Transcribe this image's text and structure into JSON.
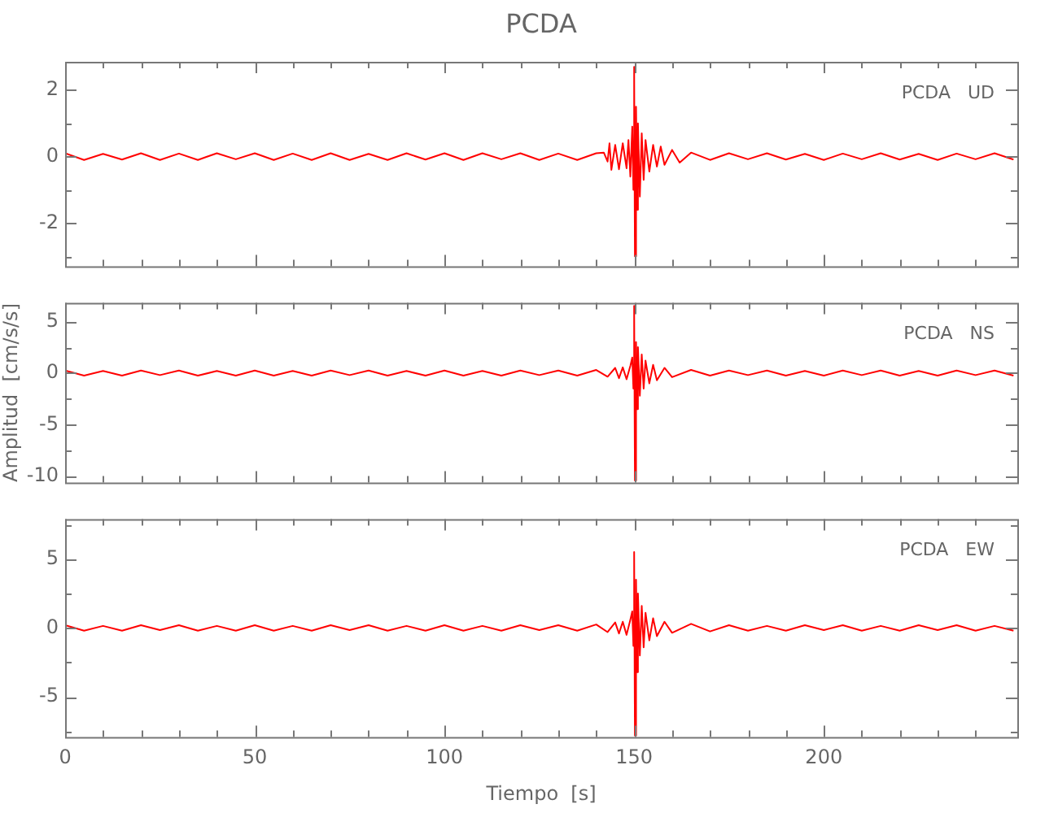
{
  "chart_data": [
    {
      "type": "line",
      "title": "PCDA",
      "annotations": [
        "PCDA   UD"
      ],
      "tick_labels": "y",
      "grid": false,
      "legend": false,
      "marker": "none",
      "line_style": "solid",
      "x": [
        0,
        5,
        10,
        15,
        20,
        25,
        30,
        35,
        40,
        45,
        50,
        55,
        60,
        65,
        70,
        75,
        80,
        85,
        90,
        95,
        100,
        105,
        110,
        115,
        120,
        125,
        130,
        135,
        140,
        142,
        143,
        143.5,
        144,
        145,
        146,
        147,
        148,
        148.5,
        149,
        149.5,
        149.8,
        150,
        150.2,
        150.5,
        150.8,
        151,
        151.5,
        152,
        152.5,
        153,
        154,
        155,
        156,
        157,
        158,
        160,
        162,
        165,
        170,
        175,
        180,
        185,
        190,
        195,
        200,
        205,
        210,
        215,
        220,
        225,
        230,
        235,
        240,
        245,
        250
      ],
      "series": [
        {
          "color": "#ff0000",
          "values": [
            0.1,
            -0.1,
            0.08,
            -0.09,
            0.1,
            -0.1,
            0.09,
            -0.1,
            0.1,
            -0.08,
            0.1,
            -0.1,
            0.09,
            -0.1,
            0.1,
            -0.1,
            0.08,
            -0.1,
            0.1,
            -0.09,
            0.1,
            -0.1,
            0.1,
            -0.08,
            0.1,
            -0.1,
            0.09,
            -0.1,
            0.1,
            0.12,
            -0.15,
            0.4,
            -0.4,
            0.35,
            -0.38,
            0.4,
            -0.35,
            0.5,
            -0.6,
            0.9,
            -1.0,
            2.7,
            -3.0,
            1.5,
            -1.6,
            1.0,
            -1.2,
            0.7,
            -0.7,
            0.5,
            -0.45,
            0.35,
            -0.3,
            0.3,
            -0.25,
            0.2,
            -0.18,
            0.12,
            -0.1,
            0.1,
            -0.08,
            0.1,
            -0.09,
            0.08,
            -0.1,
            0.09,
            -0.08,
            0.1,
            -0.09,
            0.08,
            -0.1,
            0.09,
            -0.08,
            0.1,
            -0.09
          ]
        }
      ],
      "xlim": [
        0,
        251
      ],
      "xticks": [
        0,
        {
          "value": 10,
          "label": null
        },
        {
          "value": 20,
          "label": null
        },
        {
          "value": 30,
          "label": null
        },
        {
          "value": 40,
          "label": null
        },
        50,
        {
          "value": 60,
          "label": null
        },
        {
          "value": 70,
          "label": null
        },
        {
          "value": 80,
          "label": null
        },
        {
          "value": 90,
          "label": null
        },
        100,
        {
          "value": 110,
          "label": null
        },
        {
          "value": 120,
          "label": null
        },
        {
          "value": 130,
          "label": null
        },
        {
          "value": 140,
          "label": null
        },
        150,
        {
          "value": 160,
          "label": null
        },
        {
          "value": 170,
          "label": null
        },
        {
          "value": 180,
          "label": null
        },
        {
          "value": 190,
          "label": null
        },
        200,
        {
          "value": 210,
          "label": null
        },
        {
          "value": 220,
          "label": null
        },
        {
          "value": 230,
          "label": null
        },
        {
          "value": 240,
          "label": null
        }
      ],
      "ylim": [
        -3.3,
        2.85
      ],
      "yticks": [
        {
          "value": -3,
          "label": null
        },
        -2,
        {
          "value": -1,
          "label": null
        },
        0,
        {
          "value": 1,
          "label": null
        },
        2
      ]
    },
    {
      "type": "line",
      "ylabel": "Amplitud  [cm/s/s]",
      "annotations": [
        "PCDA   NS"
      ],
      "tick_labels": "y",
      "grid": false,
      "legend": false,
      "marker": "none",
      "line_style": "solid",
      "x": [
        0,
        5,
        10,
        15,
        20,
        25,
        30,
        35,
        40,
        45,
        50,
        55,
        60,
        65,
        70,
        75,
        80,
        85,
        90,
        95,
        100,
        105,
        110,
        115,
        120,
        125,
        130,
        135,
        140,
        143,
        145,
        146,
        147,
        148,
        149,
        149.5,
        149.8,
        150,
        150.2,
        150.5,
        150.8,
        151,
        151.5,
        152,
        152.5,
        153,
        154,
        155,
        156,
        158,
        160,
        165,
        170,
        175,
        180,
        185,
        190,
        195,
        200,
        205,
        210,
        215,
        220,
        225,
        230,
        235,
        240,
        245,
        250
      ],
      "series": [
        {
          "color": "#ff0000",
          "values": [
            0.25,
            -0.25,
            0.2,
            -0.25,
            0.25,
            -0.2,
            0.25,
            -0.25,
            0.2,
            -0.25,
            0.25,
            -0.25,
            0.2,
            -0.25,
            0.25,
            -0.2,
            0.25,
            -0.25,
            0.2,
            -0.25,
            0.25,
            -0.25,
            0.2,
            -0.25,
            0.25,
            -0.2,
            0.25,
            -0.25,
            0.3,
            -0.35,
            0.5,
            -0.5,
            0.55,
            -0.6,
            0.7,
            1.5,
            -1.5,
            6.5,
            -10.4,
            3.0,
            -3.5,
            2.5,
            -2.2,
            1.8,
            -1.5,
            1.2,
            -1.0,
            0.8,
            -0.7,
            0.5,
            -0.4,
            0.3,
            -0.25,
            0.25,
            -0.2,
            0.25,
            -0.25,
            0.2,
            -0.25,
            0.25,
            -0.2,
            0.25,
            -0.25,
            0.2,
            -0.25,
            0.25,
            -0.2,
            0.25,
            -0.25
          ]
        }
      ],
      "xlim": [
        0,
        251
      ],
      "xticks": [
        0,
        {
          "value": 10,
          "label": null
        },
        {
          "value": 20,
          "label": null
        },
        {
          "value": 30,
          "label": null
        },
        {
          "value": 40,
          "label": null
        },
        50,
        {
          "value": 60,
          "label": null
        },
        {
          "value": 70,
          "label": null
        },
        {
          "value": 80,
          "label": null
        },
        {
          "value": 90,
          "label": null
        },
        100,
        {
          "value": 110,
          "label": null
        },
        {
          "value": 120,
          "label": null
        },
        {
          "value": 130,
          "label": null
        },
        {
          "value": 140,
          "label": null
        },
        150,
        {
          "value": 160,
          "label": null
        },
        {
          "value": 170,
          "label": null
        },
        {
          "value": 180,
          "label": null
        },
        {
          "value": 190,
          "label": null
        },
        200,
        {
          "value": 210,
          "label": null
        },
        {
          "value": 220,
          "label": null
        },
        {
          "value": 230,
          "label": null
        },
        {
          "value": 240,
          "label": null
        }
      ],
      "ylim": [
        -10.6,
        6.8
      ],
      "yticks": [
        -10,
        {
          "value": -7.5,
          "label": null
        },
        -5,
        {
          "value": -2.5,
          "label": null
        },
        0,
        {
          "value": 2.5,
          "label": null
        },
        5
      ]
    },
    {
      "type": "line",
      "xlabel": "Tiempo  [s]",
      "annotations": [
        "PCDA   EW"
      ],
      "grid": false,
      "legend": false,
      "marker": "none",
      "line_style": "solid",
      "x": [
        0,
        5,
        10,
        15,
        20,
        25,
        30,
        35,
        40,
        45,
        50,
        55,
        60,
        65,
        70,
        75,
        80,
        85,
        90,
        95,
        100,
        105,
        110,
        115,
        120,
        125,
        130,
        135,
        140,
        143,
        145,
        146,
        147,
        148,
        149,
        149.5,
        149.8,
        150,
        150.2,
        150.5,
        150.8,
        151,
        151.5,
        152,
        152.5,
        153,
        154,
        155,
        156,
        158,
        160,
        165,
        170,
        175,
        180,
        185,
        190,
        195,
        200,
        205,
        210,
        215,
        220,
        225,
        230,
        235,
        240,
        245,
        250
      ],
      "series": [
        {
          "color": "#ff0000",
          "values": [
            0.2,
            -0.2,
            0.15,
            -0.2,
            0.2,
            -0.15,
            0.2,
            -0.2,
            0.15,
            -0.2,
            0.2,
            -0.2,
            0.15,
            -0.2,
            0.2,
            -0.15,
            0.2,
            -0.2,
            0.15,
            -0.2,
            0.2,
            -0.2,
            0.15,
            -0.2,
            0.2,
            -0.15,
            0.2,
            -0.2,
            0.25,
            -0.3,
            0.4,
            -0.4,
            0.45,
            -0.5,
            0.6,
            1.2,
            -1.3,
            5.5,
            -7.8,
            3.5,
            -3.2,
            2.5,
            -2.0,
            1.6,
            -1.4,
            1.1,
            -0.9,
            0.7,
            -0.6,
            0.45,
            -0.35,
            0.3,
            -0.25,
            0.2,
            -0.2,
            0.15,
            -0.2,
            0.2,
            -0.15,
            0.2,
            -0.2,
            0.15,
            -0.2,
            0.2,
            -0.15,
            0.2,
            -0.2,
            0.15,
            -0.2
          ]
        }
      ],
      "xlim": [
        0,
        251
      ],
      "xticks": [
        0,
        {
          "value": 10,
          "label": null
        },
        {
          "value": 20,
          "label": null
        },
        {
          "value": 30,
          "label": null
        },
        {
          "value": 40,
          "label": null
        },
        50,
        {
          "value": 60,
          "label": null
        },
        {
          "value": 70,
          "label": null
        },
        {
          "value": 80,
          "label": null
        },
        {
          "value": 90,
          "label": null
        },
        100,
        {
          "value": 110,
          "label": null
        },
        {
          "value": 120,
          "label": null
        },
        {
          "value": 130,
          "label": null
        },
        {
          "value": 140,
          "label": null
        },
        150,
        {
          "value": 160,
          "label": null
        },
        {
          "value": 170,
          "label": null
        },
        {
          "value": 180,
          "label": null
        },
        {
          "value": 190,
          "label": null
        },
        200,
        {
          "value": 210,
          "label": null
        },
        {
          "value": 220,
          "label": null
        },
        {
          "value": 230,
          "label": null
        },
        {
          "value": 240,
          "label": null
        }
      ],
      "ylim": [
        -7.9,
        7.9
      ],
      "yticks": [
        {
          "value": -7.5,
          "label": null
        },
        -5,
        {
          "value": -2.5,
          "label": null
        },
        0,
        {
          "value": 2.5,
          "label": null
        },
        5,
        {
          "value": 7.5,
          "label": null
        }
      ]
    }
  ]
}
